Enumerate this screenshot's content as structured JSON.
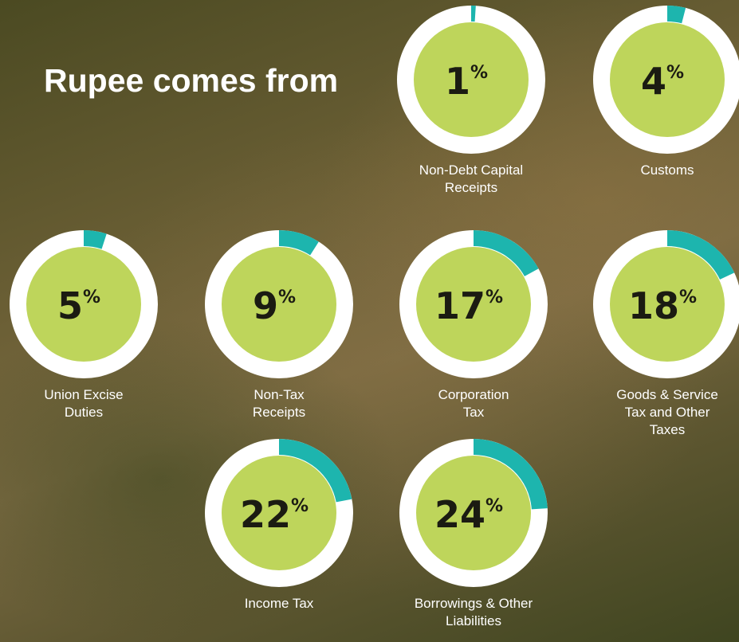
{
  "chart_data": {
    "type": "donut",
    "title": "Rupee comes from",
    "unit": "%",
    "categories": [
      "Non-Debt Capital Receipts",
      "Customs",
      "Union Excise Duties",
      "Non-Tax Receipts",
      "Corporation Tax",
      "Goods & Service Tax and Other Taxes",
      "Income Tax",
      "Borrowings & Other Liabilities"
    ],
    "values": [
      1,
      4,
      5,
      9,
      17,
      18,
      22,
      24
    ],
    "colors": {
      "ring": "#ffffff",
      "share": "#1db5ae",
      "center": "#bed55b"
    }
  }
}
